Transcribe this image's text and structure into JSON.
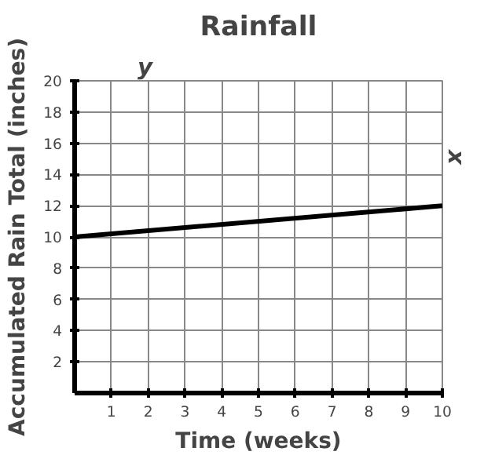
{
  "chart_data": {
    "type": "line",
    "title": "Rainfall",
    "xlabel": "Time (weeks)",
    "ylabel": "Accumulated Rain Total (inches)",
    "annotations": [
      "x",
      "y"
    ],
    "x": [
      0,
      10
    ],
    "series": [
      {
        "color": "#000000",
        "values": [
          10,
          12
        ]
      }
    ],
    "xlim": [
      0,
      10
    ],
    "ylim": [
      0,
      20
    ],
    "xticks": [
      1,
      2,
      3,
      4,
      5,
      6,
      7,
      8,
      9,
      10
    ],
    "yticks": [
      2,
      4,
      6,
      8,
      10,
      12,
      14,
      16,
      18,
      20
    ],
    "grid": true,
    "marker": "none",
    "line_style": "solid"
  }
}
